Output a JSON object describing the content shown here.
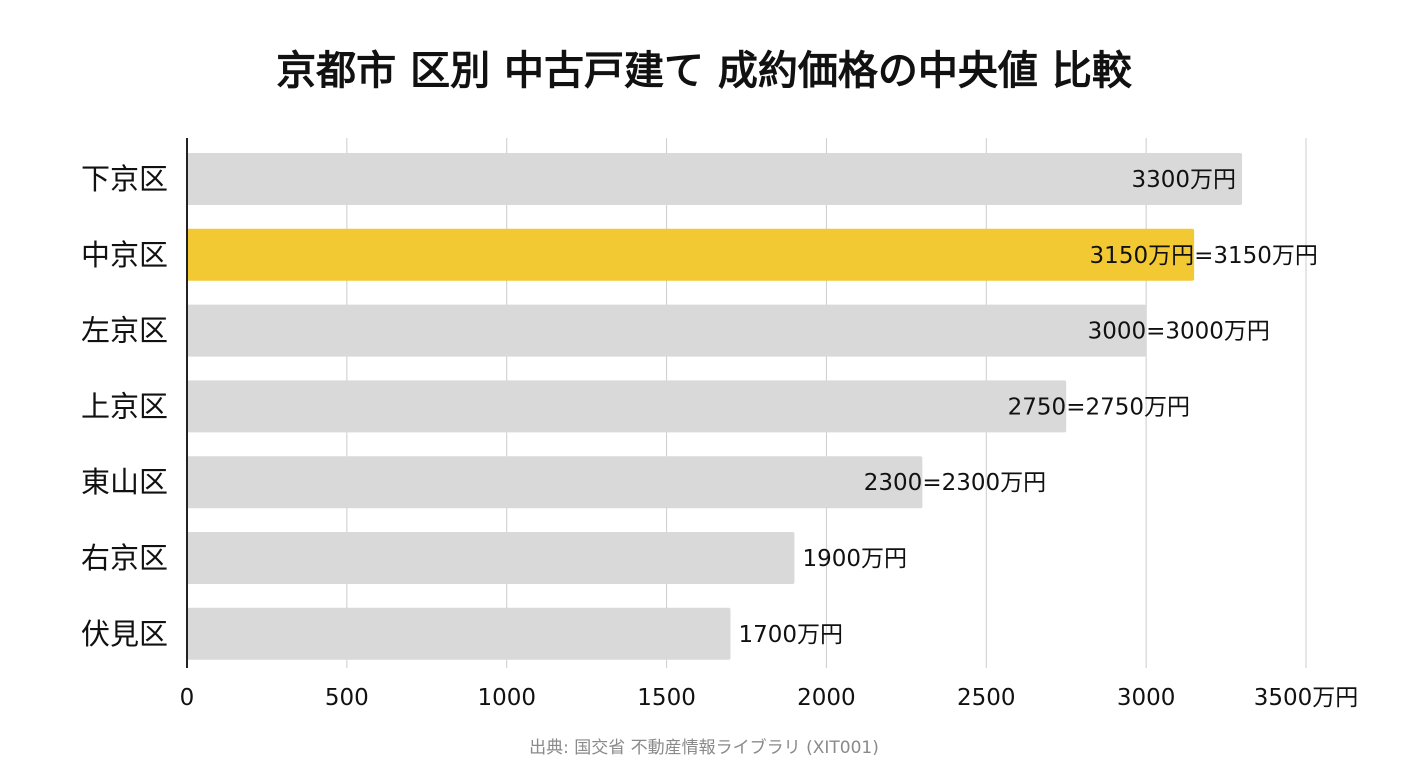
{
  "title": "京都市 区別 中古戸建て 成約価格の中央値 比較",
  "source": "出典: 国交省 不動産情報ライブラリ (XIT001)",
  "chart_data": {
    "type": "bar",
    "orientation": "horizontal",
    "title": "京都市 区別 中古戸建て 成約価格の中央値 比較",
    "xlabel": "",
    "ylabel": "",
    "unit": "万円",
    "categories": [
      "下京区",
      "中京区",
      "左京区",
      "上京区",
      "東山区",
      "右京区",
      "伏見区"
    ],
    "values": [
      3300,
      3150,
      3000,
      2750,
      2300,
      1900,
      1700
    ],
    "data_labels": [
      "3300万円",
      "3150万円=3150万円",
      "3000=3000万円",
      "2750=2750万円",
      "2300=2300万円",
      "1900万円",
      "1700万円"
    ],
    "xlim": [
      0,
      3500
    ],
    "ticks": [
      0,
      500,
      1000,
      1500,
      2000,
      2500,
      3000,
      3500
    ],
    "tick_labels": [
      "0",
      "500",
      "1000",
      "1500",
      "2000",
      "2500",
      "3000",
      "3500万円"
    ],
    "grid": "vertical",
    "highlight_index": 1,
    "colors": {
      "bar": "#d9d9d9",
      "highlight": "#f2c933",
      "grid": "#cccccc",
      "axis": "#222222"
    }
  }
}
